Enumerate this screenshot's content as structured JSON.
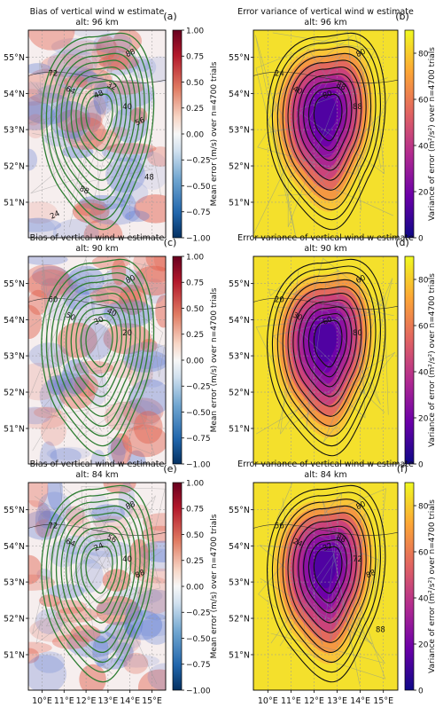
{
  "chart_data": [
    {
      "type": "heatmap",
      "panel_label": "(a)",
      "title_line1": "Bias of vertical wind w estimate",
      "title_line2": "alt: 96 km",
      "colorbar_label": "Mean error (m/s) over n=4700 trials",
      "colorbar_range": [
        -1.0,
        1.0
      ],
      "colorbar_ticks": [
        "1.00",
        "0.75",
        "0.50",
        "0.25",
        "0.00",
        "−0.25",
        "−0.50",
        "−0.75",
        "−1.00"
      ],
      "colormap": "diverging blue-white-red",
      "ylabels": [
        "55°N",
        "54°N",
        "53°N",
        "52°N",
        "51°N"
      ],
      "contour_color": "#2e7d32",
      "contour_labels": [
        "88",
        "72",
        "64",
        "48",
        "40",
        "32",
        "56",
        "48",
        "88",
        "24"
      ]
    },
    {
      "type": "heatmap",
      "panel_label": "(b)",
      "title_line1": "Error variance of vertical wind w estimate",
      "title_line2": "alt: 96 km",
      "colorbar_label": "Variance of error (m²/s²) over n=4700 trials",
      "colorbar_range": [
        0,
        90
      ],
      "colorbar_ticks": [
        "80",
        "60",
        "40",
        "20",
        "0"
      ],
      "colormap": "plasma",
      "ylabels": [
        "55°N",
        "54°N",
        "53°N",
        "52°N",
        "51°N"
      ],
      "contour_color": "#111111",
      "contour_labels": [
        "80",
        "24",
        "40",
        "80",
        "88",
        "88"
      ]
    },
    {
      "type": "heatmap",
      "panel_label": "(c)",
      "title_line1": "Bias of vertical wind w estimate",
      "title_line2": "alt: 90 km",
      "colorbar_label": "Mean error (m/s) over n=4700 trials",
      "colorbar_range": [
        -1.0,
        1.0
      ],
      "colorbar_ticks": [
        "1.00",
        "0.75",
        "0.50",
        "0.25",
        "0.00",
        "−0.25",
        "−0.50",
        "−0.75",
        "−1.00"
      ],
      "colormap": "diverging blue-white-red",
      "ylabels": [
        "55°N",
        "54°N",
        "53°N",
        "52°N",
        "51°N"
      ],
      "contour_color": "#2e7d32",
      "contour_labels": [
        "80",
        "60",
        "50",
        "30",
        "20",
        "40"
      ]
    },
    {
      "type": "heatmap",
      "panel_label": "(d)",
      "title_line1": "Error variance of vertical wind w estimate",
      "title_line2": "alt: 90 km",
      "colorbar_label": "Variance of error (m²/s²) over n=4700 trials",
      "colorbar_range": [
        0,
        90
      ],
      "colorbar_ticks": [
        "80",
        "60",
        "40",
        "20",
        "0"
      ],
      "colormap": "plasma",
      "ylabels": [
        "55°N",
        "54°N",
        "53°N",
        "52°N",
        "51°N"
      ],
      "contour_color": "#111111",
      "contour_labels": [
        "60",
        "20",
        "30",
        "60",
        "80"
      ]
    },
    {
      "type": "heatmap",
      "panel_label": "(e)",
      "title_line1": "Bias of vertical wind w estimate",
      "title_line2": "alt: 84 km",
      "colorbar_label": "Mean error (m/s) over n=4700 trials",
      "colorbar_range": [
        -1.0,
        1.0
      ],
      "colorbar_ticks": [
        "1.00",
        "0.75",
        "0.50",
        "0.25",
        "0.00",
        "−0.25",
        "−0.50",
        "−0.75",
        "−1.00"
      ],
      "colormap": "diverging blue-white-red",
      "ylabels": [
        "55°N",
        "54°N",
        "53°N",
        "52°N",
        "51°N"
      ],
      "xlabels": [
        "10°E",
        "11°E",
        "12°E",
        "13°E",
        "14°E",
        "15°E"
      ],
      "contour_color": "#2e7d32",
      "contour_labels": [
        "88",
        "72",
        "64",
        "24",
        "40",
        "56",
        "88"
      ]
    },
    {
      "type": "heatmap",
      "panel_label": "(f)",
      "title_line1": "Error variance of vertical wind w estimate",
      "title_line2": "alt: 84 km",
      "colorbar_label": "Variance of error (m²/s²) over n=4700 trials",
      "colorbar_range": [
        0,
        90
      ],
      "colorbar_ticks": [
        "80",
        "60",
        "40",
        "20",
        "0"
      ],
      "colormap": "plasma",
      "ylabels": [
        "55°N",
        "54°N",
        "53°N",
        "52°N",
        "51°N"
      ],
      "xlabels": [
        "10°E",
        "11°E",
        "12°E",
        "13°E",
        "14°E",
        "15°E"
      ],
      "contour_color": "#111111",
      "contour_labels": [
        "80",
        "56",
        "24",
        "32",
        "72",
        "88",
        "88",
        "88"
      ]
    }
  ]
}
